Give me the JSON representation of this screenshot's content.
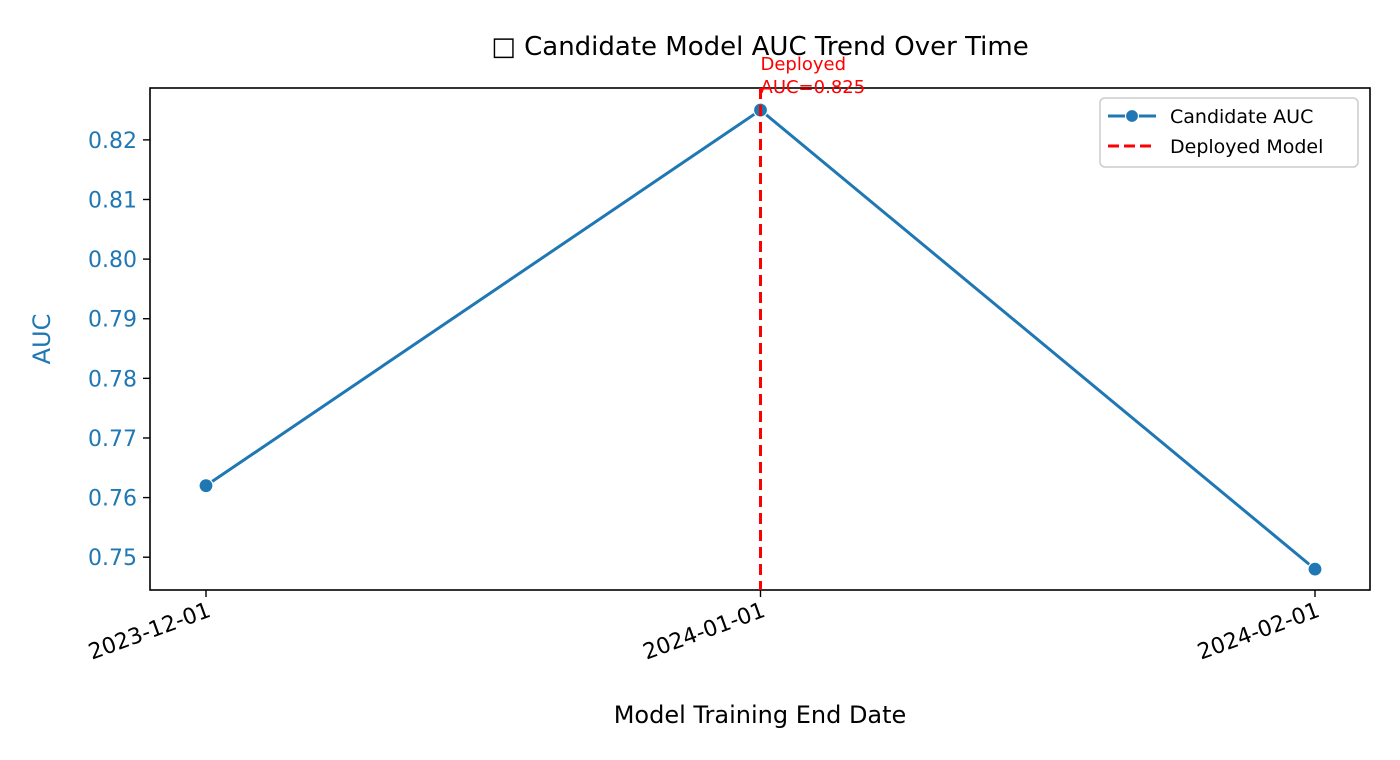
{
  "chart_data": {
    "type": "line",
    "title": "□ Candidate Model AUC Trend Over Time",
    "xlabel": "Model Training End Date",
    "ylabel": "AUC",
    "x": [
      "2023-12-01",
      "2024-01-01",
      "2024-02-01"
    ],
    "series": [
      {
        "name": "Candidate AUC",
        "values": [
          0.762,
          0.825,
          0.748
        ],
        "color": "#1f77b4",
        "marker": "circle"
      }
    ],
    "yticks": [
      0.75,
      0.76,
      0.77,
      0.78,
      0.79,
      0.8,
      0.81,
      0.82
    ],
    "ytick_labels": [
      "0.75",
      "0.76",
      "0.77",
      "0.78",
      "0.79",
      "0.80",
      "0.81",
      "0.82"
    ],
    "ylim": [
      0.7445,
      0.8287
    ],
    "grid": false,
    "vline": {
      "x": "2024-01-01",
      "name": "Deployed Model",
      "color": "#ff0000",
      "style": "dashed",
      "annotation": [
        "Deployed",
        "AUC=0.825"
      ]
    },
    "legend_position": "top-right",
    "ylabel_color": "#1f77b4",
    "ytick_color": "#1f77b4"
  }
}
